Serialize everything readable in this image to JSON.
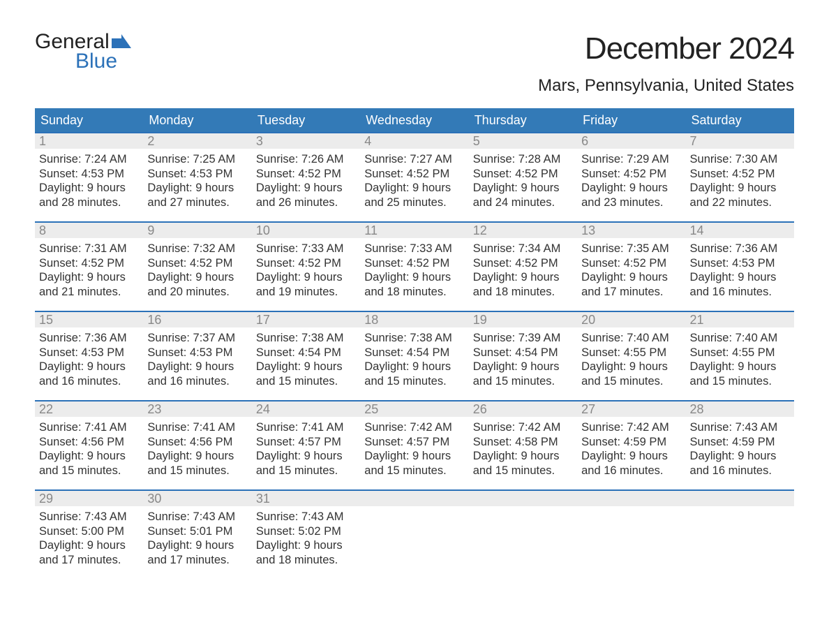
{
  "brand": {
    "top": "General",
    "bottom": "Blue",
    "flag_color": "#2b71b8"
  },
  "title": "December 2024",
  "location": "Mars, Pennsylvania, United States",
  "colors": {
    "header_bg": "#337ab7",
    "header_text": "#ffffff",
    "strip_bg": "#ececec",
    "strip_text": "#888888",
    "strip_border": "#2b71b8",
    "body_text": "#333333",
    "page_bg": "#ffffff"
  },
  "weekdays": [
    "Sunday",
    "Monday",
    "Tuesday",
    "Wednesday",
    "Thursday",
    "Friday",
    "Saturday"
  ],
  "weeks": [
    [
      {
        "n": "1",
        "sunrise": "Sunrise: 7:24 AM",
        "sunset": "Sunset: 4:53 PM",
        "daylight": "Daylight: 9 hours and 28 minutes."
      },
      {
        "n": "2",
        "sunrise": "Sunrise: 7:25 AM",
        "sunset": "Sunset: 4:53 PM",
        "daylight": "Daylight: 9 hours and 27 minutes."
      },
      {
        "n": "3",
        "sunrise": "Sunrise: 7:26 AM",
        "sunset": "Sunset: 4:52 PM",
        "daylight": "Daylight: 9 hours and 26 minutes."
      },
      {
        "n": "4",
        "sunrise": "Sunrise: 7:27 AM",
        "sunset": "Sunset: 4:52 PM",
        "daylight": "Daylight: 9 hours and 25 minutes."
      },
      {
        "n": "5",
        "sunrise": "Sunrise: 7:28 AM",
        "sunset": "Sunset: 4:52 PM",
        "daylight": "Daylight: 9 hours and 24 minutes."
      },
      {
        "n": "6",
        "sunrise": "Sunrise: 7:29 AM",
        "sunset": "Sunset: 4:52 PM",
        "daylight": "Daylight: 9 hours and 23 minutes."
      },
      {
        "n": "7",
        "sunrise": "Sunrise: 7:30 AM",
        "sunset": "Sunset: 4:52 PM",
        "daylight": "Daylight: 9 hours and 22 minutes."
      }
    ],
    [
      {
        "n": "8",
        "sunrise": "Sunrise: 7:31 AM",
        "sunset": "Sunset: 4:52 PM",
        "daylight": "Daylight: 9 hours and 21 minutes."
      },
      {
        "n": "9",
        "sunrise": "Sunrise: 7:32 AM",
        "sunset": "Sunset: 4:52 PM",
        "daylight": "Daylight: 9 hours and 20 minutes."
      },
      {
        "n": "10",
        "sunrise": "Sunrise: 7:33 AM",
        "sunset": "Sunset: 4:52 PM",
        "daylight": "Daylight: 9 hours and 19 minutes."
      },
      {
        "n": "11",
        "sunrise": "Sunrise: 7:33 AM",
        "sunset": "Sunset: 4:52 PM",
        "daylight": "Daylight: 9 hours and 18 minutes."
      },
      {
        "n": "12",
        "sunrise": "Sunrise: 7:34 AM",
        "sunset": "Sunset: 4:52 PM",
        "daylight": "Daylight: 9 hours and 18 minutes."
      },
      {
        "n": "13",
        "sunrise": "Sunrise: 7:35 AM",
        "sunset": "Sunset: 4:52 PM",
        "daylight": "Daylight: 9 hours and 17 minutes."
      },
      {
        "n": "14",
        "sunrise": "Sunrise: 7:36 AM",
        "sunset": "Sunset: 4:53 PM",
        "daylight": "Daylight: 9 hours and 16 minutes."
      }
    ],
    [
      {
        "n": "15",
        "sunrise": "Sunrise: 7:36 AM",
        "sunset": "Sunset: 4:53 PM",
        "daylight": "Daylight: 9 hours and 16 minutes."
      },
      {
        "n": "16",
        "sunrise": "Sunrise: 7:37 AM",
        "sunset": "Sunset: 4:53 PM",
        "daylight": "Daylight: 9 hours and 16 minutes."
      },
      {
        "n": "17",
        "sunrise": "Sunrise: 7:38 AM",
        "sunset": "Sunset: 4:54 PM",
        "daylight": "Daylight: 9 hours and 15 minutes."
      },
      {
        "n": "18",
        "sunrise": "Sunrise: 7:38 AM",
        "sunset": "Sunset: 4:54 PM",
        "daylight": "Daylight: 9 hours and 15 minutes."
      },
      {
        "n": "19",
        "sunrise": "Sunrise: 7:39 AM",
        "sunset": "Sunset: 4:54 PM",
        "daylight": "Daylight: 9 hours and 15 minutes."
      },
      {
        "n": "20",
        "sunrise": "Sunrise: 7:40 AM",
        "sunset": "Sunset: 4:55 PM",
        "daylight": "Daylight: 9 hours and 15 minutes."
      },
      {
        "n": "21",
        "sunrise": "Sunrise: 7:40 AM",
        "sunset": "Sunset: 4:55 PM",
        "daylight": "Daylight: 9 hours and 15 minutes."
      }
    ],
    [
      {
        "n": "22",
        "sunrise": "Sunrise: 7:41 AM",
        "sunset": "Sunset: 4:56 PM",
        "daylight": "Daylight: 9 hours and 15 minutes."
      },
      {
        "n": "23",
        "sunrise": "Sunrise: 7:41 AM",
        "sunset": "Sunset: 4:56 PM",
        "daylight": "Daylight: 9 hours and 15 minutes."
      },
      {
        "n": "24",
        "sunrise": "Sunrise: 7:41 AM",
        "sunset": "Sunset: 4:57 PM",
        "daylight": "Daylight: 9 hours and 15 minutes."
      },
      {
        "n": "25",
        "sunrise": "Sunrise: 7:42 AM",
        "sunset": "Sunset: 4:57 PM",
        "daylight": "Daylight: 9 hours and 15 minutes."
      },
      {
        "n": "26",
        "sunrise": "Sunrise: 7:42 AM",
        "sunset": "Sunset: 4:58 PM",
        "daylight": "Daylight: 9 hours and 15 minutes."
      },
      {
        "n": "27",
        "sunrise": "Sunrise: 7:42 AM",
        "sunset": "Sunset: 4:59 PM",
        "daylight": "Daylight: 9 hours and 16 minutes."
      },
      {
        "n": "28",
        "sunrise": "Sunrise: 7:43 AM",
        "sunset": "Sunset: 4:59 PM",
        "daylight": "Daylight: 9 hours and 16 minutes."
      }
    ],
    [
      {
        "n": "29",
        "sunrise": "Sunrise: 7:43 AM",
        "sunset": "Sunset: 5:00 PM",
        "daylight": "Daylight: 9 hours and 17 minutes."
      },
      {
        "n": "30",
        "sunrise": "Sunrise: 7:43 AM",
        "sunset": "Sunset: 5:01 PM",
        "daylight": "Daylight: 9 hours and 17 minutes."
      },
      {
        "n": "31",
        "sunrise": "Sunrise: 7:43 AM",
        "sunset": "Sunset: 5:02 PM",
        "daylight": "Daylight: 9 hours and 18 minutes."
      },
      null,
      null,
      null,
      null
    ]
  ]
}
